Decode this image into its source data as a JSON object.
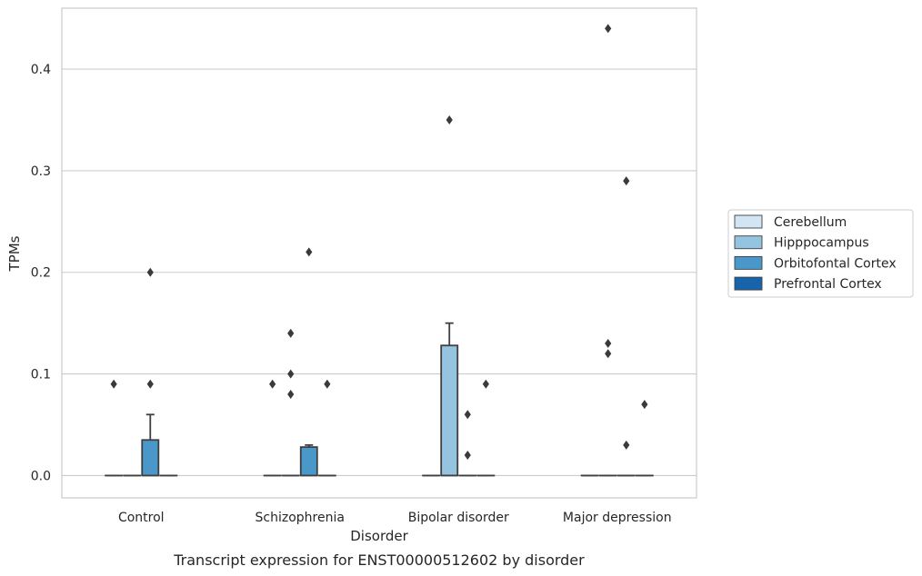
{
  "chart_data": {
    "type": "box",
    "title": "Transcript expression for ENST00000512602 by disorder",
    "xlabel": "Disorder",
    "ylabel": "TPMs",
    "ylim": [
      -0.022,
      0.46
    ],
    "yticks": [
      0.0,
      0.1,
      0.2,
      0.3,
      0.4
    ],
    "ytick_labels": [
      "0.0",
      "0.1",
      "0.2",
      "0.3",
      "0.4"
    ],
    "grid": "horizontal",
    "legend_position": "right",
    "categories": [
      "Control",
      "Schizophrenia",
      "Bipolar disorder",
      "Major depression"
    ],
    "series": [
      {
        "name": "Cerebellum",
        "color": "#d3e4f3",
        "boxes": [
          {
            "q1": 0,
            "median": 0,
            "q3": 0,
            "whisker_low": 0,
            "whisker_high": 0,
            "outliers": [
              0.09
            ]
          },
          {
            "q1": 0,
            "median": 0,
            "q3": 0,
            "whisker_low": 0,
            "whisker_high": 0,
            "outliers": [
              0.09
            ]
          },
          {
            "q1": 0,
            "median": 0,
            "q3": 0,
            "whisker_low": 0,
            "whisker_high": 0,
            "outliers": []
          },
          {
            "q1": 0,
            "median": 0,
            "q3": 0,
            "whisker_low": 0,
            "whisker_high": 0,
            "outliers": []
          }
        ]
      },
      {
        "name": "Hipppocampus",
        "color": "#94c4df",
        "boxes": [
          {
            "q1": 0,
            "median": 0,
            "q3": 0,
            "whisker_low": 0,
            "whisker_high": 0,
            "outliers": []
          },
          {
            "q1": 0,
            "median": 0,
            "q3": 0,
            "whisker_low": 0,
            "whisker_high": 0,
            "outliers": [
              0.14,
              0.1,
              0.08
            ]
          },
          {
            "q1": 0,
            "median": 0,
            "q3": 0.128,
            "whisker_low": 0,
            "whisker_high": 0.15,
            "outliers": [
              0.35
            ]
          },
          {
            "q1": 0,
            "median": 0,
            "q3": 0,
            "whisker_low": 0,
            "whisker_high": 0,
            "outliers": [
              0.44,
              0.13,
              0.12
            ]
          }
        ]
      },
      {
        "name": "Orbitofontal Cortex",
        "color": "#4a98c9",
        "boxes": [
          {
            "q1": 0,
            "median": 0,
            "q3": 0.035,
            "whisker_low": 0,
            "whisker_high": 0.06,
            "outliers": [
              0.2,
              0.09
            ]
          },
          {
            "q1": 0,
            "median": 0,
            "q3": 0.028,
            "whisker_low": 0,
            "whisker_high": 0.03,
            "outliers": [
              0.22
            ]
          },
          {
            "q1": 0,
            "median": 0,
            "q3": 0,
            "whisker_low": 0,
            "whisker_high": 0,
            "outliers": [
              0.06,
              0.02
            ]
          },
          {
            "q1": 0,
            "median": 0,
            "q3": 0,
            "whisker_low": 0,
            "whisker_high": 0,
            "outliers": [
              0.29,
              0.03
            ]
          }
        ]
      },
      {
        "name": "Prefrontal Cortex",
        "color": "#1764ab",
        "boxes": [
          {
            "q1": 0,
            "median": 0,
            "q3": 0,
            "whisker_low": 0,
            "whisker_high": 0,
            "outliers": []
          },
          {
            "q1": 0,
            "median": 0,
            "q3": 0,
            "whisker_low": 0,
            "whisker_high": 0,
            "outliers": [
              0.09
            ]
          },
          {
            "q1": 0,
            "median": 0,
            "q3": 0,
            "whisker_low": 0,
            "whisker_high": 0,
            "outliers": [
              0.09
            ]
          },
          {
            "q1": 0,
            "median": 0,
            "q3": 0,
            "whisker_low": 0,
            "whisker_high": 0,
            "outliers": [
              0.07
            ]
          }
        ]
      }
    ]
  }
}
